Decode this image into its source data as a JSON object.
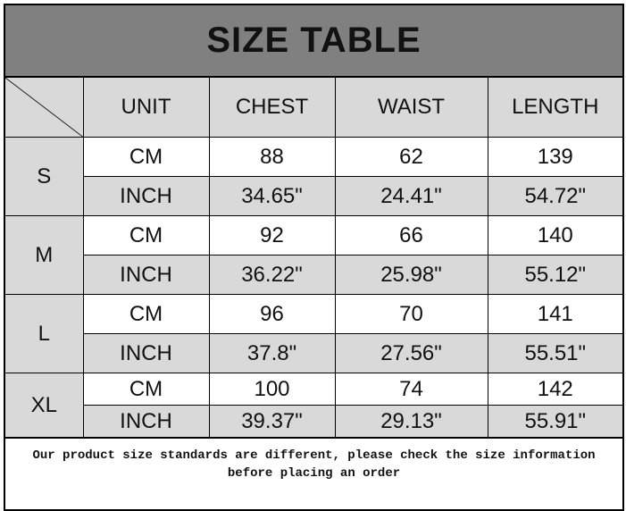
{
  "title": "SIZE TABLE",
  "headers": [
    "UNIT",
    "CHEST",
    "WAIST",
    "LENGTH"
  ],
  "sizes": [
    {
      "size": "S",
      "cm": {
        "unit": "CM",
        "chest": "88",
        "waist": "62",
        "length": "139"
      },
      "inch": {
        "unit": "INCH",
        "chest": "34.65\"",
        "waist": "24.41\"",
        "length": "54.72\""
      }
    },
    {
      "size": "M",
      "cm": {
        "unit": "CM",
        "chest": "92",
        "waist": "66",
        "length": "140"
      },
      "inch": {
        "unit": "INCH",
        "chest": "36.22\"",
        "waist": "25.98\"",
        "length": "55.12\""
      }
    },
    {
      "size": "L",
      "cm": {
        "unit": "CM",
        "chest": "96",
        "waist": "70",
        "length": "141"
      },
      "inch": {
        "unit": "INCH",
        "chest": "37.8\"",
        "waist": "27.56\"",
        "length": "55.51\""
      }
    },
    {
      "size": "XL",
      "cm": {
        "unit": "CM",
        "chest": "100",
        "waist": "74",
        "length": "142"
      },
      "inch": {
        "unit": "INCH",
        "chest": "39.37\"",
        "waist": "29.13\"",
        "length": "55.91\""
      }
    }
  ],
  "footer": {
    "line1": "Our product size standards are different, please check the size information",
    "line2": "before placing an order"
  },
  "colors": {
    "title_bg": "#808080",
    "cell_gray": "#d9d9d9"
  }
}
